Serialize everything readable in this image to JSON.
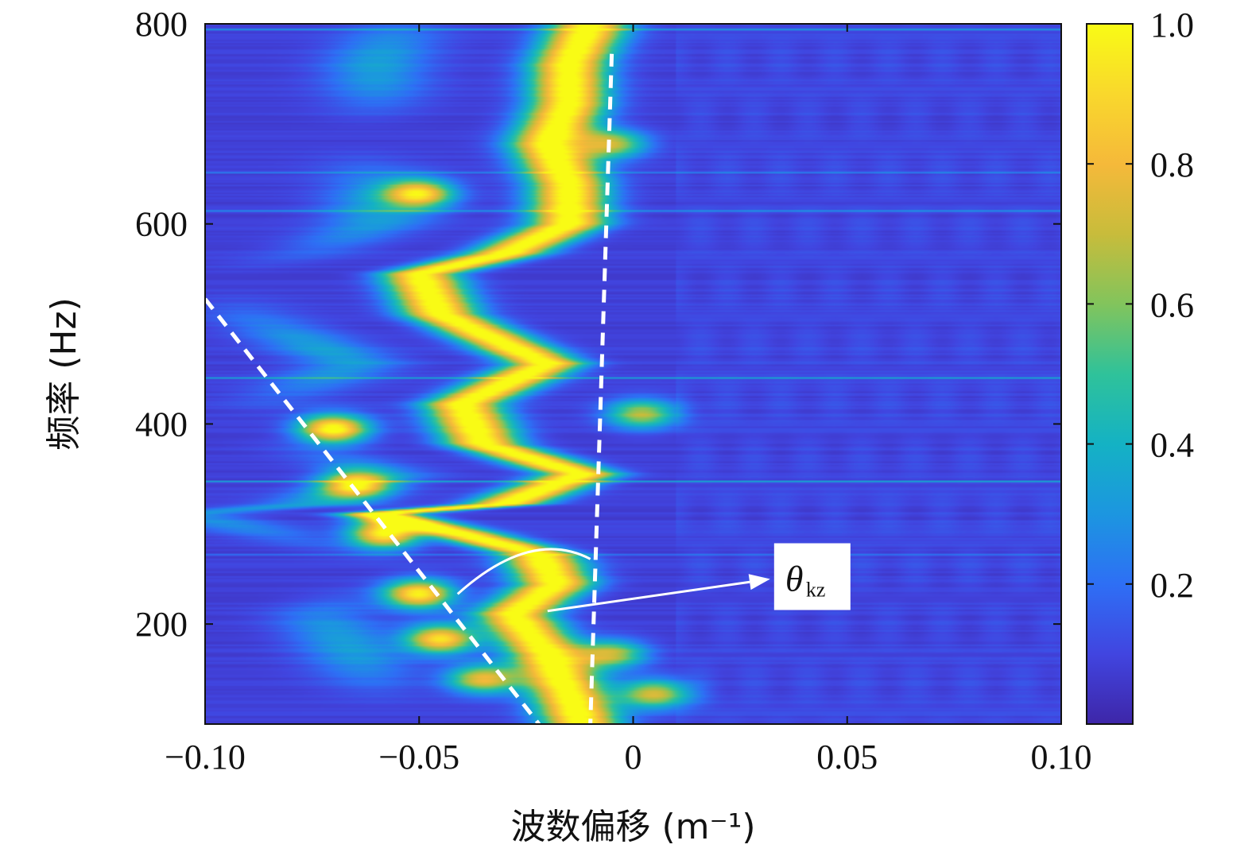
{
  "chart_data": {
    "type": "heatmap",
    "title": "",
    "xlabel": "波数偏移 (m⁻¹)",
    "ylabel": "频率 (Hz)",
    "xlim": [
      -0.1,
      0.1
    ],
    "ylim": [
      100,
      800
    ],
    "x_ticks": [
      -0.1,
      -0.05,
      0,
      0.05,
      0.1
    ],
    "x_tick_labels": [
      "−0.10",
      "−0.05",
      "0",
      "0.05",
      "0.10"
    ],
    "y_ticks": [
      200,
      400,
      600,
      800
    ],
    "y_tick_labels": [
      "200",
      "400",
      "600",
      "800"
    ],
    "colorbar": {
      "range": [
        0,
        1.0
      ],
      "ticks": [
        0.2,
        0.4,
        0.6,
        0.8,
        1.0
      ],
      "tick_labels": [
        "0.2",
        "0.4",
        "0.6",
        "0.8",
        "1.0"
      ],
      "colormap": "parula",
      "colors": [
        "#3e26a8",
        "#4145e0",
        "#2e6ff5",
        "#1c96e0",
        "#14b2c4",
        "#2fc29a",
        "#82c45c",
        "#c8bc3b",
        "#f5b93a",
        "#f9d82c",
        "#f9fb15"
      ]
    },
    "ridges": [
      {
        "points": [
          [
            -0.012,
            100
          ],
          [
            -0.015,
            130
          ],
          [
            -0.02,
            170
          ],
          [
            -0.028,
            210
          ],
          [
            -0.018,
            240
          ],
          [
            -0.022,
            270
          ],
          [
            -0.04,
            290
          ],
          [
            -0.06,
            310
          ],
          [
            -0.03,
            320
          ],
          [
            -0.012,
            350
          ],
          [
            -0.035,
            380
          ],
          [
            -0.04,
            420
          ],
          [
            -0.02,
            460
          ],
          [
            -0.03,
            480
          ],
          [
            -0.045,
            510
          ],
          [
            -0.05,
            550
          ],
          [
            -0.03,
            570
          ],
          [
            -0.015,
            600
          ],
          [
            -0.015,
            640
          ],
          [
            -0.02,
            680
          ],
          [
            -0.015,
            720
          ],
          [
            -0.015,
            760
          ],
          [
            -0.01,
            800
          ]
        ],
        "peak": 1.0
      }
    ],
    "blobs": [
      {
        "x": -0.05,
        "y": 630,
        "value": 0.8
      },
      {
        "x": -0.07,
        "y": 395,
        "value": 0.95
      },
      {
        "x": -0.065,
        "y": 340,
        "value": 0.75
      },
      {
        "x": -0.058,
        "y": 290,
        "value": 0.9
      },
      {
        "x": -0.05,
        "y": 230,
        "value": 0.9
      },
      {
        "x": -0.045,
        "y": 185,
        "value": 0.85
      },
      {
        "x": -0.035,
        "y": 145,
        "value": 0.7
      },
      {
        "x": 0.002,
        "y": 410,
        "value": 0.6
      },
      {
        "x": 0.005,
        "y": 130,
        "value": 0.65
      },
      {
        "x": -0.005,
        "y": 170,
        "value": 0.6
      },
      {
        "x": -0.005,
        "y": 680,
        "value": 0.6
      }
    ],
    "guide_lines": [
      {
        "name": "dashed-line-left",
        "points": [
          [
            -0.1,
            525
          ],
          [
            -0.022,
            100
          ]
        ],
        "color": "#ffffff",
        "style": "dashed"
      },
      {
        "name": "dashed-line-right",
        "points": [
          [
            -0.005,
            770
          ],
          [
            -0.01,
            100
          ]
        ],
        "color": "#ffffff",
        "style": "dashed"
      }
    ],
    "annotation": {
      "text_symbol": "θ",
      "text_subscript": "kz",
      "arrow_from": [
        -0.02,
        213
      ],
      "arrow_to": [
        0.032,
        245
      ],
      "arc_from": [
        -0.041,
        230
      ],
      "arc_peak": [
        -0.022,
        276
      ],
      "arc_to": [
        -0.01,
        265
      ]
    }
  }
}
